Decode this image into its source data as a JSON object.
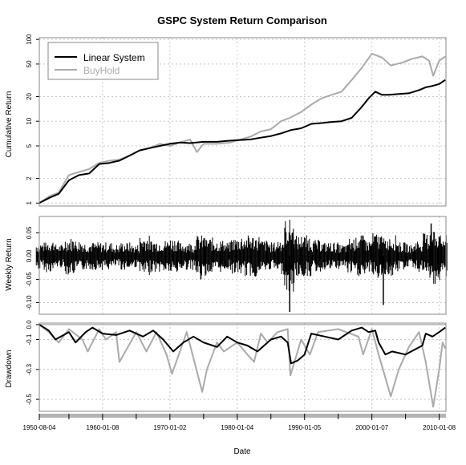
{
  "chart_data": [
    {
      "panel": "cumulative",
      "type": "line",
      "title": "GSPC System Return Comparison",
      "ylabel": "Cumulative Return",
      "yscale": "log",
      "ylim": [
        0.92,
        105
      ],
      "xlim": [
        1950.6,
        2011.0
      ],
      "yticks": [
        1,
        2,
        5,
        10,
        20,
        50,
        100
      ],
      "ytick_labels": [
        "1",
        "2",
        "5",
        "10",
        "20",
        "50",
        "100"
      ],
      "grid": true,
      "legend": "top-left",
      "series": [
        {
          "name": "Linear System",
          "color": "#000000",
          "x": [
            1950.6,
            1952.0,
            1953.5,
            1955.0,
            1956.5,
            1958.0,
            1959.5,
            1961.0,
            1962.5,
            1964.0,
            1965.5,
            1967.0,
            1968.5,
            1970.0,
            1971.5,
            1973.0,
            1975.0,
            1977.0,
            1979.0,
            1980.5,
            1982.0,
            1983.5,
            1985.0,
            1986.5,
            1988.0,
            1989.5,
            1991.0,
            1992.5,
            1994.0,
            1995.5,
            1997.0,
            1998.5,
            1999.5,
            2000.5,
            2001.5,
            2002.5,
            2004.0,
            2005.5,
            2007.0,
            2008.0,
            2009.0,
            2010.0,
            2010.9
          ],
          "y": [
            1.0,
            1.15,
            1.3,
            1.9,
            2.2,
            2.3,
            3.0,
            3.1,
            3.3,
            3.8,
            4.4,
            4.7,
            5.0,
            5.3,
            5.5,
            5.4,
            5.6,
            5.6,
            5.8,
            5.9,
            6.0,
            6.3,
            6.6,
            7.1,
            7.8,
            8.2,
            9.3,
            9.5,
            9.8,
            10.0,
            11.0,
            15.0,
            19.0,
            23.0,
            21.0,
            21.0,
            21.5,
            22.0,
            24.0,
            26.0,
            27.0,
            28.5,
            32.0
          ]
        },
        {
          "name": "BuyHold",
          "color": "#aaaaaa",
          "x": [
            1950.6,
            1952.0,
            1953.5,
            1955.0,
            1956.5,
            1958.0,
            1959.5,
            1961.0,
            1962.5,
            1964.0,
            1965.5,
            1967.0,
            1968.5,
            1970.0,
            1971.5,
            1973.0,
            1974.0,
            1975.0,
            1977.0,
            1979.0,
            1980.5,
            1982.0,
            1983.5,
            1985.0,
            1986.5,
            1987.8,
            1989.5,
            1991.0,
            1992.5,
            1994.0,
            1995.5,
            1997.0,
            1998.5,
            2000.0,
            2001.5,
            2002.8,
            2004.5,
            2006.0,
            2007.5,
            2008.5,
            2009.1,
            2010.0,
            2010.9
          ],
          "y": [
            1.0,
            1.2,
            1.35,
            2.2,
            2.4,
            2.6,
            3.1,
            3.3,
            3.4,
            3.8,
            4.4,
            4.7,
            5.3,
            5.0,
            5.5,
            6.0,
            4.2,
            5.3,
            5.3,
            5.5,
            6.0,
            6.5,
            7.5,
            8.0,
            10.0,
            11.0,
            13.0,
            16.0,
            19.0,
            21.0,
            23.0,
            32.0,
            45.0,
            67.0,
            60.0,
            48.0,
            52.0,
            58.0,
            62.0,
            55.0,
            36.0,
            55.0,
            62.0
          ]
        }
      ]
    },
    {
      "panel": "weekly",
      "type": "line",
      "ylabel": "Weekly Return",
      "ylim": [
        -0.125,
        0.085
      ],
      "yticks": [
        0.05,
        0.0,
        -0.05,
        -0.1
      ],
      "ytick_labels": [
        "0.05",
        "0.00",
        "-0.05",
        "-0.10"
      ],
      "xlim": [
        1950.6,
        2011.0
      ],
      "grid": true,
      "series": [
        {
          "name": "Linear System",
          "color": "#000000",
          "activity_x": [
            1950.9,
            1952.2,
            1953.6,
            1955.1,
            1956.4,
            1957.9,
            1959.3,
            1960.8,
            1962.3,
            1963.5,
            1964.9,
            1966.3,
            1967.8,
            1969.2,
            1970.6,
            1971.9,
            1973.3,
            1974.6,
            1975.9,
            1977.2,
            1978.5,
            1979.9,
            1981.3,
            1982.7,
            1984.0,
            1985.4,
            1986.7,
            1987.8,
            1989.0,
            1990.3,
            1991.7,
            1993.0,
            1994.4,
            1995.8,
            1997.1,
            1998.4,
            1999.6,
            2000.9,
            2002.0,
            2003.2,
            2004.5,
            2005.8,
            2007.1,
            2008.4,
            2009.4,
            2010.5
          ],
          "activity_amp": [
            0.03,
            0.035,
            0.025,
            0.04,
            0.035,
            0.03,
            0.03,
            0.03,
            0.025,
            0.03,
            0.025,
            0.045,
            0.035,
            0.035,
            0.04,
            0.03,
            0.03,
            0.045,
            0.04,
            0.035,
            0.03,
            0.04,
            0.045,
            0.045,
            0.035,
            0.03,
            0.04,
            0.08,
            0.045,
            0.045,
            0.035,
            0.03,
            0.03,
            0.025,
            0.04,
            0.045,
            0.035,
            0.05,
            0.04,
            0.045,
            0.03,
            0.025,
            0.035,
            0.05,
            0.06,
            0.045
          ],
          "extremes": [
            {
              "x": 1987.8,
              "y": -0.12
            },
            {
              "x": 2001.7,
              "y": -0.105
            },
            {
              "x": 2008.8,
              "y": 0.07
            },
            {
              "x": 1974.6,
              "y": -0.05
            }
          ]
        }
      ]
    },
    {
      "panel": "drawdown",
      "type": "line",
      "ylabel": "Drawdown",
      "ylim": [
        -0.58,
        0.01
      ],
      "yticks": [
        0.0,
        -0.1,
        -0.3,
        -0.5
      ],
      "ytick_labels": [
        "0.0",
        "-0.1",
        "-0.3",
        "-0.5"
      ],
      "xlim": [
        1950.6,
        2011.0
      ],
      "grid": true,
      "xlabel": "Date",
      "xtick_positions": [
        1950.6,
        1960.0,
        1970.0,
        1980.0,
        1990.0,
        2000.0,
        2010.0
      ],
      "xtick_labels": [
        "1950-08-04",
        "1960-01-08",
        "1970-01-02",
        "1980-01-04",
        "1990-01-05",
        "2000-01-07",
        "2010-01-08"
      ],
      "series": [
        {
          "name": "Linear System",
          "color": "#000000",
          "x": [
            1950.6,
            1952.0,
            1953.0,
            1955.0,
            1956.0,
            1957.5,
            1958.5,
            1960.0,
            1962.0,
            1964.0,
            1966.0,
            1967.5,
            1969.0,
            1970.5,
            1972.0,
            1973.5,
            1975.0,
            1977.0,
            1978.5,
            1980.0,
            1981.5,
            1983.0,
            1985.0,
            1986.5,
            1987.5,
            1988.0,
            1989.0,
            1990.0,
            1991.0,
            1993.0,
            1995.0,
            1997.0,
            1998.5,
            1999.5,
            2000.5,
            2001.0,
            2002.0,
            2003.0,
            2005.0,
            2007.5,
            2008.0,
            2009.0,
            2010.0,
            2010.9
          ],
          "y": [
            0.0,
            -0.04,
            -0.1,
            -0.05,
            -0.12,
            -0.05,
            -0.02,
            -0.06,
            -0.07,
            -0.04,
            -0.08,
            -0.04,
            -0.1,
            -0.18,
            -0.12,
            -0.08,
            -0.12,
            -0.15,
            -0.08,
            -0.12,
            -0.14,
            -0.18,
            -0.1,
            -0.08,
            -0.12,
            -0.26,
            -0.24,
            -0.2,
            -0.06,
            -0.08,
            -0.1,
            -0.04,
            -0.02,
            -0.05,
            -0.04,
            -0.12,
            -0.2,
            -0.18,
            -0.2,
            -0.14,
            -0.06,
            -0.08,
            -0.05,
            -0.02
          ]
        },
        {
          "name": "BuyHold",
          "color": "#aaaaaa",
          "x": [
            1950.6,
            1952.0,
            1953.5,
            1955.0,
            1957.0,
            1957.8,
            1959.5,
            1960.5,
            1962.0,
            1962.5,
            1965.0,
            1966.5,
            1968.0,
            1969.5,
            1970.3,
            1972.5,
            1974.8,
            1975.5,
            1977.0,
            1978.0,
            1980.0,
            1981.5,
            1982.5,
            1983.5,
            1984.5,
            1986.0,
            1987.5,
            1987.9,
            1989.5,
            1990.8,
            1992.0,
            1995.0,
            1998.0,
            1998.7,
            2000.0,
            2001.0,
            2002.8,
            2004.0,
            2005.5,
            2007.0,
            2008.0,
            2009.1,
            2010.0,
            2010.5,
            2010.9
          ],
          "y": [
            0.0,
            -0.05,
            -0.12,
            -0.03,
            -0.1,
            -0.18,
            -0.03,
            -0.1,
            -0.05,
            -0.25,
            -0.05,
            -0.18,
            -0.05,
            -0.2,
            -0.33,
            -0.05,
            -0.45,
            -0.3,
            -0.12,
            -0.18,
            -0.12,
            -0.2,
            -0.25,
            -0.06,
            -0.12,
            -0.05,
            -0.03,
            -0.34,
            -0.1,
            -0.2,
            -0.05,
            -0.03,
            -0.08,
            -0.2,
            -0.03,
            -0.2,
            -0.48,
            -0.3,
            -0.15,
            -0.05,
            -0.25,
            -0.55,
            -0.3,
            -0.12,
            -0.16
          ]
        }
      ]
    }
  ]
}
